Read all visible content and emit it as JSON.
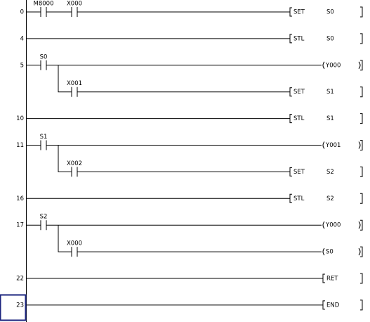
{
  "rungs": [
    {
      "step": "0",
      "contacts": [
        "M8000",
        "X000"
      ],
      "output": {
        "op": "SET",
        "arg": "S0"
      }
    },
    {
      "step": "4",
      "contacts": [],
      "output": {
        "op": "STL",
        "arg": "S0"
      }
    },
    {
      "step": "5",
      "contacts": [
        "S0"
      ],
      "output": {
        "coil": "Y000"
      },
      "branch": {
        "contacts": [
          "X001"
        ],
        "output": {
          "op": "SET",
          "arg": "S1"
        }
      }
    },
    {
      "step": "10",
      "contacts": [],
      "output": {
        "op": "STL",
        "arg": "S1"
      }
    },
    {
      "step": "11",
      "contacts": [
        "S1"
      ],
      "output": {
        "coil": "Y001"
      },
      "branch": {
        "contacts": [
          "X002"
        ],
        "output": {
          "op": "SET",
          "arg": "S2"
        }
      }
    },
    {
      "step": "16",
      "contacts": [],
      "output": {
        "op": "STL",
        "arg": "S2"
      }
    },
    {
      "step": "17",
      "contacts": [
        "S2"
      ],
      "output": {
        "coil": "Y000"
      },
      "branch": {
        "contacts": [
          "X000"
        ],
        "output": {
          "coil": "S0"
        }
      }
    },
    {
      "step": "22",
      "contacts": [],
      "output": {
        "op": "RET"
      }
    },
    {
      "step": "23",
      "contacts": [],
      "output": {
        "op": "END"
      }
    }
  ]
}
